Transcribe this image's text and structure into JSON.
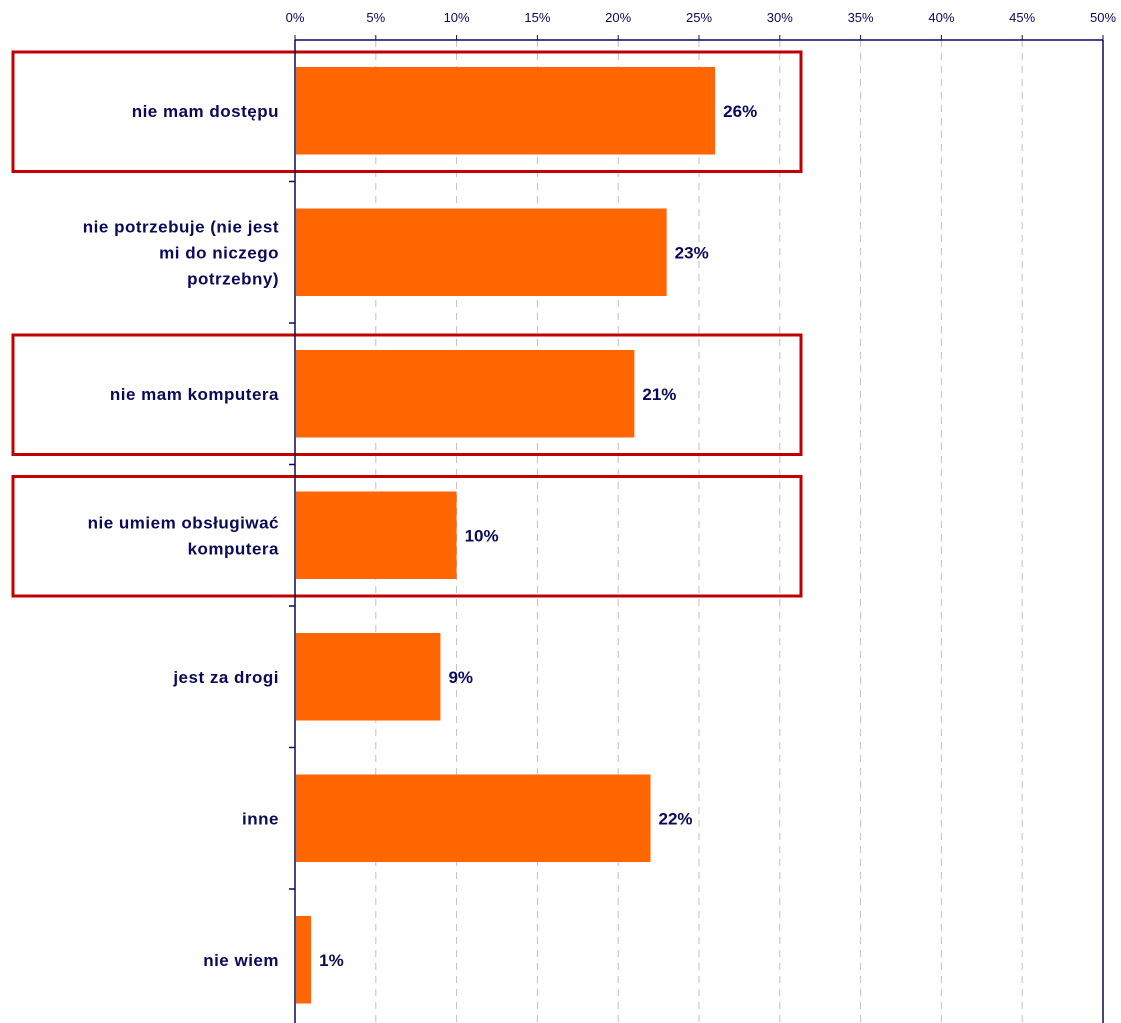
{
  "chart_data": {
    "type": "bar",
    "orientation": "horizontal",
    "categories": [
      [
        "nie mam dostępu"
      ],
      [
        "nie potrzebuje (nie jest",
        "mi do niczego",
        "potrzebny)"
      ],
      [
        "nie mam komputera"
      ],
      [
        "nie umiem obsługiwać",
        "komputera"
      ],
      [
        "jest za drogi"
      ],
      [
        "inne"
      ],
      [
        "nie wiem"
      ]
    ],
    "values": [
      26,
      23,
      21,
      10,
      9,
      22,
      1
    ],
    "data_labels": [
      "26%",
      "23%",
      "21%",
      "10%",
      "9%",
      "22%",
      "1%"
    ],
    "highlighted": [
      true,
      false,
      true,
      true,
      false,
      false,
      false
    ],
    "xlim": [
      0,
      50
    ],
    "ticks": [
      0,
      5,
      10,
      15,
      20,
      25,
      30,
      35,
      40,
      45,
      50
    ],
    "tick_labels": [
      "0%",
      "5%",
      "10%",
      "15%",
      "20%",
      "25%",
      "30%",
      "35%",
      "40%",
      "45%",
      "50%"
    ],
    "axis_position": "top",
    "grid": "dashed-vertical",
    "title": "",
    "xlabel": "",
    "ylabel": "",
    "colors": {
      "bar": "#ff6600",
      "axis": "#0a0a5a",
      "grid": "#c0c0c0",
      "highlight_box": "#c00000",
      "text": "#0a0a5a"
    }
  }
}
